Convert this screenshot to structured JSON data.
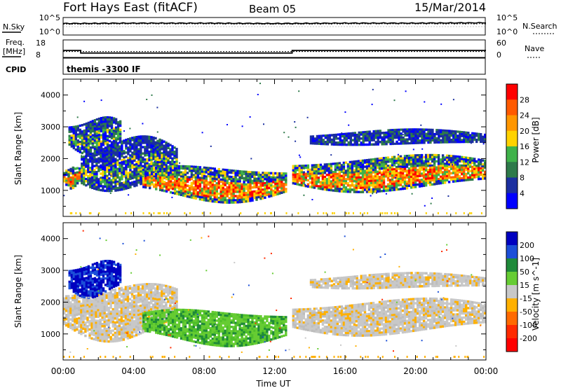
{
  "header": {
    "station": "Fort Hays East (fitACF)",
    "beam": "Beam 05",
    "date": "15/Mar/2014"
  },
  "noise_panel": {
    "left_label": "N.Sky",
    "right_label": "N.Search",
    "left_ticks": [
      "10^5",
      "10^0"
    ],
    "right_ticks": [
      "10^5",
      "10^0"
    ]
  },
  "freq_panel": {
    "left_label_1": "Freq.",
    "left_label_2": "[MHz]",
    "right_label": "Nave",
    "left_ticks": [
      "18",
      "8"
    ],
    "right_ticks": [
      "60",
      "0"
    ]
  },
  "cpid_panel": {
    "label": "CPID",
    "text": "themis -3300 IF"
  },
  "axes": {
    "ylabel": "Slant Range [km]",
    "yticks": [
      "4000",
      "3000",
      "2000",
      "1000"
    ],
    "xticks": [
      "00:00",
      "04:00",
      "08:00",
      "12:00",
      "16:00",
      "20:00",
      "00:00"
    ],
    "xlabel": "Time UT"
  },
  "power_colorbar": {
    "label": "Power [dB]",
    "ticks": [
      "28",
      "24",
      "20",
      "16",
      "12",
      "8",
      "4"
    ],
    "colors": [
      "#ff0000",
      "#ff5a00",
      "#ff9600",
      "#ffd200",
      "#3fb24a",
      "#2e7a4a",
      "#1b2fa0",
      "#0000ff"
    ]
  },
  "velocity_colorbar": {
    "label": "Velocity [m s^-1]",
    "ticks": [
      "200",
      "100",
      "50",
      "15",
      "-15",
      "-50",
      "-100",
      "-200"
    ],
    "colors": [
      "#0000c0",
      "#1c4fd8",
      "#1f8a3a",
      "#66cc33",
      "#c8c8c8",
      "#ffb000",
      "#ff6a00",
      "#ff2a00",
      "#ff0000"
    ]
  },
  "chart_data": [
    {
      "type": "line",
      "title": "N.Sky / N.Search",
      "x": [
        "00:00",
        "04:00",
        "08:00",
        "12:00",
        "16:00",
        "20:00",
        "24:00"
      ],
      "series": [
        {
          "name": "N.Sky",
          "values": [
            3.3,
            3.4,
            3.4,
            3.3,
            3.4,
            3.4,
            3.5
          ]
        },
        {
          "name": "N.Search",
          "values": [
            3.1,
            3.2,
            3.2,
            3.1,
            3.2,
            3.2,
            3.2
          ]
        }
      ]
    },
    {
      "type": "line",
      "title": "Freq. [MHz] / Nave",
      "x": [
        "00:00",
        "01:00",
        "13:00",
        "24:00"
      ],
      "series": [
        {
          "name": "Freq.",
          "values": [
            12,
            10.5,
            12,
            12
          ]
        },
        {
          "name": "Nave",
          "values": [
            20,
            20,
            20,
            20
          ]
        }
      ]
    },
    {
      "type": "heatmap",
      "title": "Power [dB]",
      "xlabel": "Time UT",
      "ylabel": "Slant Range [km]",
      "xlim": [
        0,
        24
      ],
      "ylim": [
        180,
        4500
      ],
      "regions": [
        {
          "x": [
            0.0,
            1.0
          ],
          "y": [
            1100,
            1800
          ],
          "level": "high"
        },
        {
          "x": [
            1.0,
            6.5
          ],
          "y": [
            1000,
            2600
          ],
          "level": "medium"
        },
        {
          "x": [
            0.3,
            3.3
          ],
          "y": [
            2200,
            3300
          ],
          "level": "medium"
        },
        {
          "x": [
            4.5,
            12.7
          ],
          "y": [
            700,
            1800
          ],
          "level": "high"
        },
        {
          "x": [
            13.0,
            24.0
          ],
          "y": [
            1000,
            2100
          ],
          "level": "high"
        },
        {
          "x": [
            14.0,
            24.0
          ],
          "y": [
            2400,
            2900
          ],
          "level": "low"
        }
      ]
    },
    {
      "type": "heatmap",
      "title": "Velocity [m s^-1]",
      "xlabel": "Time UT",
      "ylabel": "Slant Range [km]",
      "xlim": [
        0,
        24
      ],
      "ylim": [
        180,
        4500
      ],
      "regions": [
        {
          "x": [
            0.0,
            6.5
          ],
          "y": [
            900,
            2600
          ],
          "velocity": 0
        },
        {
          "x": [
            0.3,
            3.3
          ],
          "y": [
            2200,
            3300
          ],
          "velocity": 200
        },
        {
          "x": [
            4.5,
            12.7
          ],
          "y": [
            700,
            1800
          ],
          "velocity": 40
        },
        {
          "x": [
            13.0,
            24.0
          ],
          "y": [
            1000,
            2100
          ],
          "velocity": 0
        },
        {
          "x": [
            14.0,
            24.0
          ],
          "y": [
            2400,
            2900
          ],
          "velocity": 0
        }
      ]
    }
  ]
}
